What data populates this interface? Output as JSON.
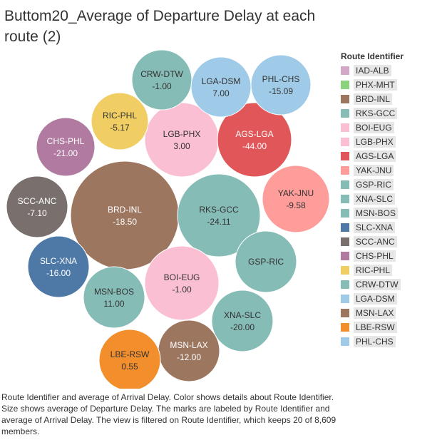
{
  "title": "Buttom20_Average of Departure Delay at each route (2)",
  "legend_title": "Route Identifier",
  "caption": "Route Identifier and average of Arrival Delay.  Color shows details about Route Identifier.  Size shows average of Departure Delay.  The marks are labeled by Route Identifier and average of Arrival Delay. The view is filtered on Route Identifier, which keeps 20 of 8,609 members.",
  "chart_data": {
    "type": "packed-bubble",
    "title": "Buttom20_Average of Departure Delay at each route (2)",
    "legend_title": "Route Identifier",
    "legend": [
      {
        "name": "IAD-ALB",
        "color": "#d4a6c8"
      },
      {
        "name": "PHX-MHT",
        "color": "#8cd17d"
      },
      {
        "name": "BRD-INL",
        "color": "#9d7660"
      },
      {
        "name": "RKS-GCC",
        "color": "#86bcb6"
      },
      {
        "name": "BOI-EUG",
        "color": "#fabfd2"
      },
      {
        "name": "LGB-PHX",
        "color": "#fabfd2"
      },
      {
        "name": "AGS-LGA",
        "color": "#e15759"
      },
      {
        "name": "YAK-JNU",
        "color": "#ff9d9a"
      },
      {
        "name": "GSP-RIC",
        "color": "#86bcb6"
      },
      {
        "name": "XNA-SLC",
        "color": "#86bcb6"
      },
      {
        "name": "MSN-BOS",
        "color": "#86bcb6"
      },
      {
        "name": "SLC-XNA",
        "color": "#4e79a7"
      },
      {
        "name": "SCC-ANC",
        "color": "#79706e"
      },
      {
        "name": "CHS-PHL",
        "color": "#b07aa1"
      },
      {
        "name": "RIC-PHL",
        "color": "#f1ce63"
      },
      {
        "name": "CRW-DTW",
        "color": "#86bcb6"
      },
      {
        "name": "LGA-DSM",
        "color": "#a0cbe8"
      },
      {
        "name": "MSN-LAX",
        "color": "#9d7660"
      },
      {
        "name": "LBE-RSW",
        "color": "#f28e2b"
      },
      {
        "name": "PHL-CHS",
        "color": "#a0cbe8"
      }
    ],
    "bubbles": [
      {
        "route": "BRD-INL",
        "arrival_delay": "-18.50",
        "color": "#9d7660",
        "text_color": "#ffffff"
      },
      {
        "route": "RKS-GCC",
        "arrival_delay": "-24.11",
        "color": "#86bcb6",
        "text_color": "#333333"
      },
      {
        "route": "BOI-EUG",
        "arrival_delay": "-1.00",
        "color": "#fabfd2",
        "text_color": "#333333"
      },
      {
        "route": "LGB-PHX",
        "arrival_delay": "3.00",
        "color": "#fabfd2",
        "text_color": "#333333"
      },
      {
        "route": "AGS-LGA",
        "arrival_delay": "-44.00",
        "color": "#e15759",
        "text_color": "#ffffff"
      },
      {
        "route": "YAK-JNU",
        "arrival_delay": "-9.58",
        "color": "#ff9d9a",
        "text_color": "#333333"
      },
      {
        "route": "GSP-RIC",
        "arrival_delay": "",
        "color": "#86bcb6",
        "text_color": "#333333"
      },
      {
        "route": "XNA-SLC",
        "arrival_delay": "-20.00",
        "color": "#86bcb6",
        "text_color": "#333333"
      },
      {
        "route": "MSN-BOS",
        "arrival_delay": "11.00",
        "color": "#86bcb6",
        "text_color": "#333333"
      },
      {
        "route": "MSN-LAX",
        "arrival_delay": "-12.00",
        "color": "#9d7660",
        "text_color": "#ffffff"
      },
      {
        "route": "LBE-RSW",
        "arrival_delay": "0.55",
        "color": "#f28e2b",
        "text_color": "#333333"
      },
      {
        "route": "SLC-XNA",
        "arrival_delay": "-16.00",
        "color": "#4e79a7",
        "text_color": "#ffffff"
      },
      {
        "route": "SCC-ANC",
        "arrival_delay": "-7.10",
        "color": "#79706e",
        "text_color": "#ffffff"
      },
      {
        "route": "CHS-PHL",
        "arrival_delay": "-21.00",
        "color": "#b07aa1",
        "text_color": "#ffffff"
      },
      {
        "route": "RIC-PHL",
        "arrival_delay": "-5.17",
        "color": "#f1ce63",
        "text_color": "#333333"
      },
      {
        "route": "CRW-DTW",
        "arrival_delay": "-1.00",
        "color": "#86bcb6",
        "text_color": "#333333"
      },
      {
        "route": "LGA-DSM",
        "arrival_delay": "7.00",
        "color": "#a0cbe8",
        "text_color": "#333333"
      },
      {
        "route": "PHL-CHS",
        "arrival_delay": "-15.09",
        "color": "#a0cbe8",
        "text_color": "#333333"
      }
    ]
  }
}
